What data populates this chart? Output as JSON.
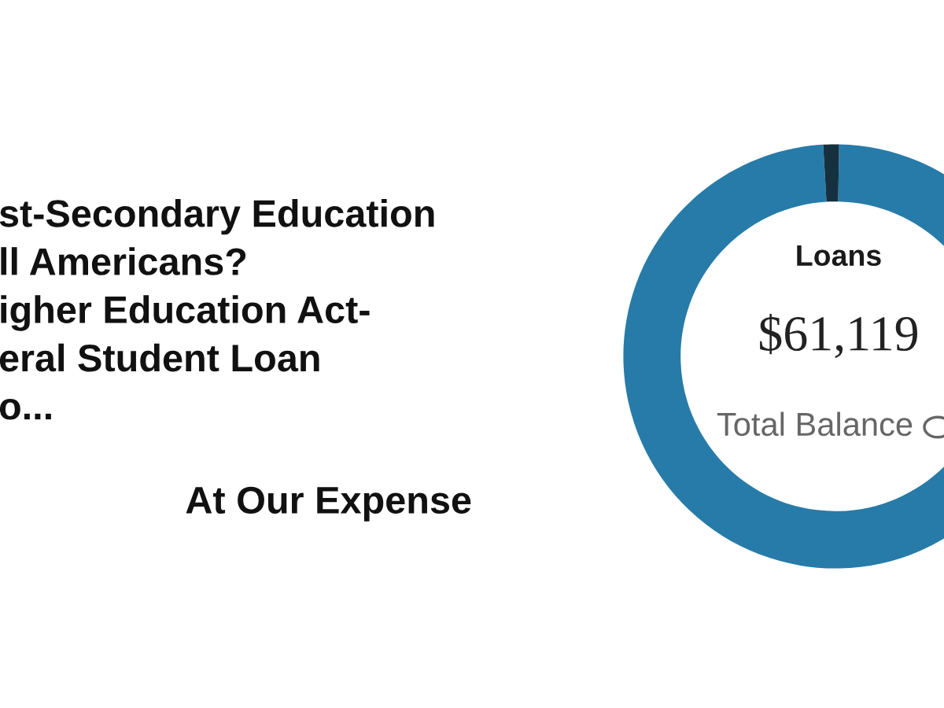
{
  "chart_data": {
    "type": "donut",
    "title": "Loans",
    "categories": [
      null,
      null
    ],
    "values": [
      98.8,
      1.2
    ],
    "colors": [
      "#277ba8",
      "#15313f"
    ],
    "annotations": [
      "$61,119",
      "Total Balance",
      "st-Secondary Education\nll Americans?\nigher Education Act-\neral Student Loan\no...",
      "At Our Expense"
    ]
  }
}
